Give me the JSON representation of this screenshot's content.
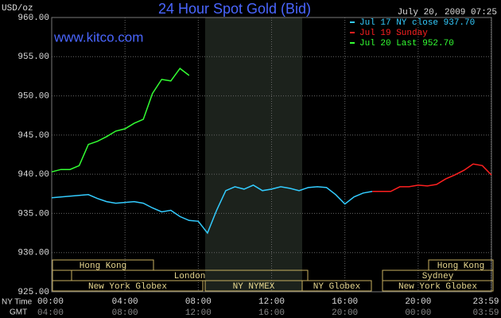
{
  "chart_data": {
    "type": "line",
    "title": "24 Hour Spot Gold (Bid)",
    "y_label": "USD/oz",
    "timestamp": "July 20, 2009 07:25",
    "watermark": "www.kitco.com",
    "x_label": "NY Time",
    "x2_label": "GMT",
    "xlim": [
      0,
      24
    ],
    "xticks": [
      {
        "value": 0,
        "label": "00:00"
      },
      {
        "value": 4,
        "label": "04:00"
      },
      {
        "value": 8,
        "label": "08:00"
      },
      {
        "value": 12,
        "label": "12:00"
      },
      {
        "value": 16,
        "label": "16:00"
      },
      {
        "value": 20,
        "label": "20:00"
      },
      {
        "value": 23.98,
        "label": "23:59"
      }
    ],
    "x2_tick_labels": [
      "04:00",
      "08:00",
      "12:00",
      "16:00",
      "20:00",
      "00:00",
      "03:59"
    ],
    "ylim": [
      925,
      960
    ],
    "yticks": [
      {
        "value": 925,
        "label": "925.00"
      },
      {
        "value": 930,
        "label": "930.00"
      },
      {
        "value": 935,
        "label": "935.00"
      },
      {
        "value": 940,
        "label": "940.00"
      },
      {
        "value": 945,
        "label": "945.00"
      },
      {
        "value": 950,
        "label": "950.00"
      },
      {
        "value": 955,
        "label": "955.00"
      },
      {
        "value": 960,
        "label": "960.00"
      }
    ],
    "grid": true,
    "legend_position": "top-right",
    "x": [
      0,
      0.5,
      1,
      1.5,
      2,
      2.5,
      3,
      3.5,
      4,
      4.5,
      5,
      5.5,
      6,
      6.5,
      7,
      7.5,
      8,
      8.5,
      9,
      9.5,
      10,
      10.5,
      11,
      11.5,
      12,
      12.5,
      13,
      13.5,
      14,
      14.5,
      15,
      15.5,
      16,
      16.5,
      17,
      17.5,
      18,
      18.5,
      19,
      19.5,
      20,
      20.5,
      21,
      21.5,
      22,
      22.5,
      23,
      23.5,
      24
    ],
    "series": [
      {
        "name": "Jul 17 NY close 937.70",
        "color": "#33ccff",
        "values": [
          937.0,
          937.1,
          937.2,
          937.3,
          937.4,
          936.9,
          936.5,
          936.3,
          936.4,
          936.5,
          936.3,
          935.7,
          935.2,
          935.4,
          934.6,
          934.1,
          934.0,
          932.5,
          935.4,
          937.9,
          938.4,
          938.1,
          938.6,
          937.9,
          938.1,
          938.4,
          938.2,
          937.9,
          938.3,
          938.4,
          938.3,
          937.4,
          936.2,
          937.1,
          937.6,
          937.8,
          null,
          null,
          null,
          null,
          null,
          null,
          null,
          null,
          null,
          null,
          null,
          null,
          null
        ]
      },
      {
        "name": "Jul 19 Sunday",
        "color": "#ff2020",
        "values": [
          null,
          null,
          null,
          null,
          null,
          null,
          null,
          null,
          null,
          null,
          null,
          null,
          null,
          null,
          null,
          null,
          null,
          null,
          null,
          null,
          null,
          null,
          null,
          null,
          null,
          null,
          null,
          null,
          null,
          null,
          null,
          null,
          null,
          null,
          null,
          937.8,
          937.8,
          937.8,
          938.4,
          938.4,
          938.6,
          938.5,
          938.7,
          939.4,
          939.9,
          940.5,
          941.3,
          941.1,
          939.9
        ]
      },
      {
        "name": "Jul 20 Last 952.70",
        "color": "#33ff33",
        "values": [
          940.3,
          940.6,
          940.6,
          941.1,
          943.8,
          944.2,
          944.8,
          945.5,
          945.8,
          946.5,
          947.0,
          950.3,
          952.1,
          951.9,
          953.5,
          952.6,
          null,
          null,
          null,
          null,
          null,
          null,
          null,
          null,
          null,
          null,
          null,
          null,
          null,
          null,
          null,
          null,
          null,
          null,
          null,
          null,
          null,
          null,
          null,
          null,
          null,
          null,
          null,
          null,
          null,
          null,
          null,
          null,
          null
        ]
      }
    ],
    "sessions": [
      "Hong Kong",
      "London",
      "New York Globex",
      "NY NYMEX",
      "NY Globex",
      "Hong Kong",
      "Sydney",
      "New York Globex"
    ]
  }
}
